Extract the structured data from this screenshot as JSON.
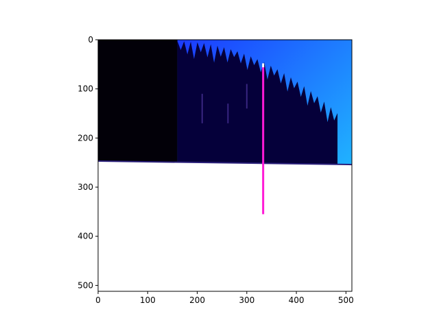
{
  "figure": {
    "type": "image-plot"
  },
  "chart_data": {
    "type": "image",
    "title": "",
    "xlabel": "",
    "ylabel": "",
    "xlim": [
      0,
      512
    ],
    "ylim": [
      512,
      0
    ],
    "x_ticks": [
      0,
      100,
      200,
      300,
      400,
      500
    ],
    "y_ticks": [
      0,
      100,
      200,
      300,
      400,
      500
    ],
    "y_inverted": true,
    "grid": false,
    "image_description_colors": {
      "sky_top": "#1a1aff",
      "sky_bottom": "#22e6ff",
      "forest": "#05003a",
      "snow": "#ffffff",
      "pole": "#ff1ad6",
      "pole_tip": "#ffffff"
    },
    "image_content": {
      "horizon_y_left": 247,
      "horizon_y_right": 254,
      "tree_left_edge_x": 160,
      "tree_right_edge_x": 483,
      "pole_x": 333,
      "pole_top_y": 48,
      "pole_bottom_y": 355
    }
  }
}
